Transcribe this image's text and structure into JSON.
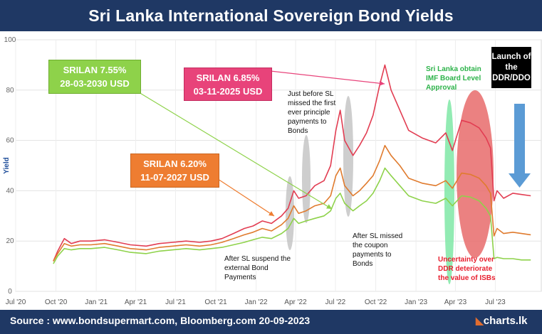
{
  "title": "Sri Lanka International Sovereign Bond Yields",
  "footer": {
    "source": "Source : www.bondsupermart.com, Bloomberg.com  20-09-2023",
    "logo": "charts.lk"
  },
  "colors": {
    "header_bg": "#1f3864",
    "series_7_55": "#8ed24a",
    "series_6_85": "#e23d52",
    "series_6_20": "#e07b2e",
    "callout_7_55": "#8ed24a",
    "callout_6_85": "#e8437a",
    "callout_6_20": "#ee7d31",
    "gray_ellipse": "#bdbdbd",
    "green_ellipse": "#7fe8a6",
    "red_ellipse": "#e86b6b",
    "blue_arrow": "#5b9bd5"
  },
  "callouts": [
    {
      "line1": "SRILAN 7.55%",
      "line2": "28-03-2030 USD"
    },
    {
      "line1": "SRILAN 6.85%",
      "line2": "03-11-2025 USD"
    },
    {
      "line1": "SRILAN 6.20%",
      "line2": "11-07-2027 USD"
    }
  ],
  "annotations": {
    "suspend": "After SL suspend the external Bond Payments",
    "principle": "Just before  SL missed the first ever principle payments to Bonds",
    "coupon": "After SL missed the coupon payments to Bonds",
    "imf": "Sri Lanka obtain IMF Board Level Approval",
    "uncertainty": "Uncertainty over DDR deteriorate the value of ISBs",
    "launch": "Launch of the DDR/DDO"
  },
  "chart_data": {
    "type": "line",
    "title": "Sri Lanka International Sovereign Bond Yields",
    "xlabel": "",
    "ylabel": "Yield",
    "ylim": [
      0,
      100
    ],
    "yticks": [
      0,
      20,
      40,
      60,
      80,
      100
    ],
    "x_ticks": [
      "Jul '20",
      "Oct '20",
      "Jan '21",
      "Apr '21",
      "Jul '21",
      "Oct '21",
      "Jan '22",
      "Apr '22",
      "Jul '22",
      "Oct '22",
      "Jan '23",
      "Apr '23",
      "Jul '23"
    ],
    "grid": true,
    "series": [
      {
        "name": "SRILAN 6.85% 03-11-2025 USD",
        "color": "#e23d52",
        "points": [
          [
            "2020-09-25",
            12
          ],
          [
            "2020-10-05",
            16
          ],
          [
            "2020-10-20",
            21
          ],
          [
            "2020-11-05",
            19
          ],
          [
            "2020-11-25",
            20
          ],
          [
            "2020-12-20",
            20
          ],
          [
            "2021-01-20",
            20.5
          ],
          [
            "2021-02-20",
            19.5
          ],
          [
            "2021-03-20",
            18.5
          ],
          [
            "2021-04-25",
            18
          ],
          [
            "2021-05-25",
            19
          ],
          [
            "2021-06-25",
            19.5
          ],
          [
            "2021-07-25",
            20
          ],
          [
            "2021-08-25",
            19.5
          ],
          [
            "2021-09-20",
            20
          ],
          [
            "2021-10-15",
            21
          ],
          [
            "2021-11-10",
            23
          ],
          [
            "2021-12-05",
            25
          ],
          [
            "2021-12-25",
            26
          ],
          [
            "2022-01-15",
            28
          ],
          [
            "2022-02-05",
            27
          ],
          [
            "2022-02-28",
            30
          ],
          [
            "2022-03-15",
            33
          ],
          [
            "2022-03-28",
            40
          ],
          [
            "2022-04-08",
            37
          ],
          [
            "2022-04-25",
            38
          ],
          [
            "2022-05-15",
            42
          ],
          [
            "2022-06-05",
            44
          ],
          [
            "2022-06-20",
            50
          ],
          [
            "2022-07-02",
            64
          ],
          [
            "2022-07-12",
            72
          ],
          [
            "2022-07-22",
            60
          ],
          [
            "2022-08-10",
            54
          ],
          [
            "2022-08-25",
            58
          ],
          [
            "2022-09-10",
            63
          ],
          [
            "2022-09-25",
            70
          ],
          [
            "2022-10-10",
            82
          ],
          [
            "2022-10-22",
            90
          ],
          [
            "2022-11-05",
            80
          ],
          [
            "2022-11-25",
            72
          ],
          [
            "2022-12-15",
            64
          ],
          [
            "2023-01-15",
            61
          ],
          [
            "2023-02-15",
            59
          ],
          [
            "2023-03-10",
            63
          ],
          [
            "2023-03-25",
            56
          ],
          [
            "2023-04-15",
            68
          ],
          [
            "2023-05-05",
            67
          ],
          [
            "2023-05-25",
            65
          ],
          [
            "2023-06-10",
            61
          ],
          [
            "2023-06-20",
            57
          ],
          [
            "2023-06-28",
            36
          ],
          [
            "2023-07-05",
            40
          ],
          [
            "2023-07-20",
            37
          ],
          [
            "2023-08-10",
            39
          ],
          [
            "2023-08-30",
            38.5
          ],
          [
            "2023-09-20",
            38
          ]
        ]
      },
      {
        "name": "SRILAN 6.20% 11-07-2027 USD",
        "color": "#e07b2e",
        "points": [
          [
            "2020-09-25",
            12
          ],
          [
            "2020-10-05",
            15
          ],
          [
            "2020-10-20",
            19
          ],
          [
            "2020-11-05",
            18
          ],
          [
            "2020-11-25",
            18.5
          ],
          [
            "2020-12-20",
            18.5
          ],
          [
            "2021-01-20",
            19
          ],
          [
            "2021-02-20",
            18
          ],
          [
            "2021-03-20",
            17
          ],
          [
            "2021-04-25",
            16.5
          ],
          [
            "2021-05-25",
            17.5
          ],
          [
            "2021-06-25",
            18
          ],
          [
            "2021-07-25",
            18.5
          ],
          [
            "2021-08-25",
            18
          ],
          [
            "2021-09-20",
            18.5
          ],
          [
            "2021-10-15",
            19.5
          ],
          [
            "2021-11-10",
            21
          ],
          [
            "2021-12-05",
            22.5
          ],
          [
            "2021-12-25",
            23.5
          ],
          [
            "2022-01-15",
            25
          ],
          [
            "2022-02-05",
            24
          ],
          [
            "2022-02-28",
            26.5
          ],
          [
            "2022-03-15",
            29
          ],
          [
            "2022-03-28",
            34
          ],
          [
            "2022-04-08",
            31
          ],
          [
            "2022-04-25",
            32
          ],
          [
            "2022-05-15",
            34
          ],
          [
            "2022-06-05",
            35
          ],
          [
            "2022-06-20",
            38
          ],
          [
            "2022-07-02",
            46
          ],
          [
            "2022-07-12",
            49
          ],
          [
            "2022-07-22",
            42
          ],
          [
            "2022-08-10",
            38
          ],
          [
            "2022-08-25",
            40
          ],
          [
            "2022-09-10",
            43
          ],
          [
            "2022-09-25",
            46
          ],
          [
            "2022-10-10",
            52
          ],
          [
            "2022-10-22",
            58
          ],
          [
            "2022-11-05",
            54
          ],
          [
            "2022-11-25",
            50
          ],
          [
            "2022-12-15",
            45
          ],
          [
            "2023-01-15",
            43
          ],
          [
            "2023-02-15",
            42
          ],
          [
            "2023-03-10",
            44
          ],
          [
            "2023-03-25",
            41
          ],
          [
            "2023-04-15",
            47
          ],
          [
            "2023-05-05",
            46.5
          ],
          [
            "2023-05-25",
            45
          ],
          [
            "2023-06-10",
            42
          ],
          [
            "2023-06-20",
            39
          ],
          [
            "2023-06-28",
            22
          ],
          [
            "2023-07-05",
            25
          ],
          [
            "2023-07-20",
            23
          ],
          [
            "2023-08-10",
            23.5
          ],
          [
            "2023-08-30",
            23
          ],
          [
            "2023-09-20",
            22.5
          ]
        ]
      },
      {
        "name": "SRILAN 7.55% 28-03-2030 USD",
        "color": "#8ed24a",
        "points": [
          [
            "2020-09-25",
            11
          ],
          [
            "2020-10-05",
            14
          ],
          [
            "2020-10-20",
            17
          ],
          [
            "2020-11-05",
            16.5
          ],
          [
            "2020-11-25",
            17
          ],
          [
            "2020-12-20",
            17
          ],
          [
            "2021-01-20",
            17.5
          ],
          [
            "2021-02-20",
            16.5
          ],
          [
            "2021-03-20",
            15.5
          ],
          [
            "2021-04-25",
            15
          ],
          [
            "2021-05-25",
            16
          ],
          [
            "2021-06-25",
            16.5
          ],
          [
            "2021-07-25",
            17
          ],
          [
            "2021-08-25",
            16.5
          ],
          [
            "2021-09-20",
            17
          ],
          [
            "2021-10-15",
            17.5
          ],
          [
            "2021-11-10",
            18.5
          ],
          [
            "2021-12-05",
            19.5
          ],
          [
            "2021-12-25",
            20.5
          ],
          [
            "2022-01-15",
            21.5
          ],
          [
            "2022-02-05",
            21
          ],
          [
            "2022-02-28",
            23
          ],
          [
            "2022-03-15",
            25
          ],
          [
            "2022-03-28",
            29
          ],
          [
            "2022-04-08",
            27
          ],
          [
            "2022-04-25",
            28
          ],
          [
            "2022-05-15",
            29
          ],
          [
            "2022-06-05",
            30
          ],
          [
            "2022-06-20",
            32
          ],
          [
            "2022-07-02",
            37
          ],
          [
            "2022-07-12",
            39
          ],
          [
            "2022-07-22",
            35
          ],
          [
            "2022-08-10",
            32
          ],
          [
            "2022-08-25",
            34
          ],
          [
            "2022-09-10",
            36
          ],
          [
            "2022-09-25",
            39
          ],
          [
            "2022-10-10",
            44
          ],
          [
            "2022-10-22",
            49
          ],
          [
            "2022-11-05",
            46
          ],
          [
            "2022-11-25",
            42
          ],
          [
            "2022-12-15",
            38
          ],
          [
            "2023-01-15",
            36
          ],
          [
            "2023-02-15",
            35
          ],
          [
            "2023-03-10",
            37
          ],
          [
            "2023-03-25",
            34
          ],
          [
            "2023-04-15",
            38
          ],
          [
            "2023-05-05",
            37.5
          ],
          [
            "2023-05-25",
            36
          ],
          [
            "2023-06-10",
            33
          ],
          [
            "2023-06-20",
            30
          ],
          [
            "2023-06-28",
            13
          ],
          [
            "2023-07-05",
            13.5
          ],
          [
            "2023-07-20",
            13
          ],
          [
            "2023-08-10",
            13
          ],
          [
            "2023-08-30",
            12.5
          ],
          [
            "2023-09-20",
            12.5
          ]
        ]
      }
    ]
  }
}
